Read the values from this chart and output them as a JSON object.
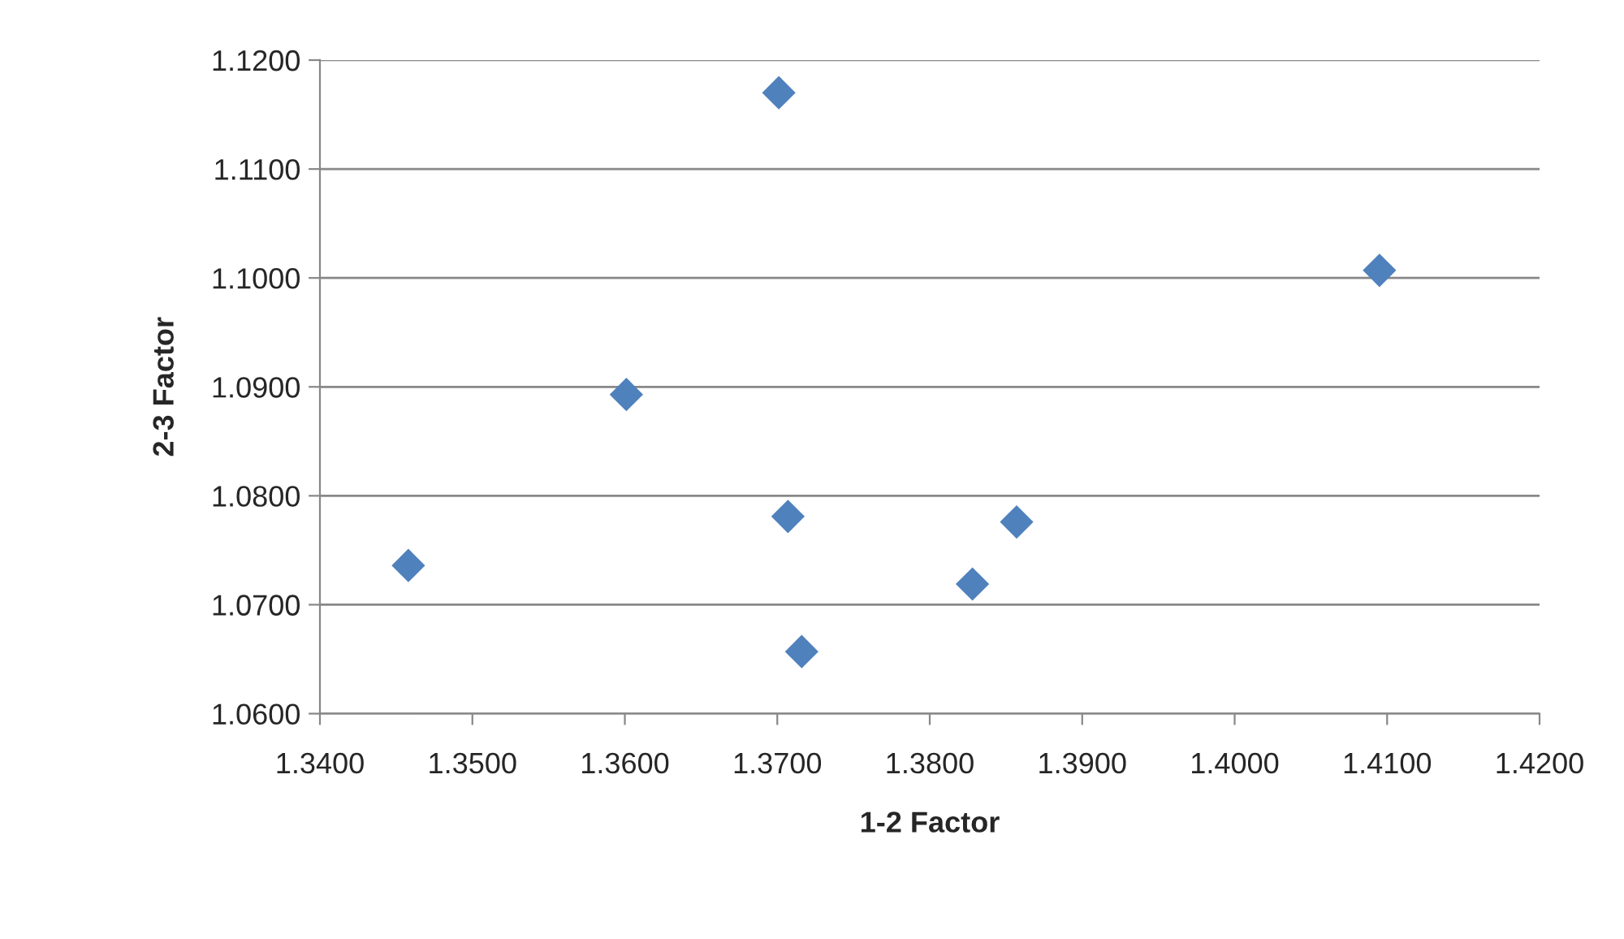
{
  "chart_data": {
    "type": "scatter",
    "xlabel": "1-2 Factor",
    "ylabel": "2-3 Factor",
    "x": [
      1.3458,
      1.3601,
      1.3701,
      1.3707,
      1.3716,
      1.3828,
      1.3857,
      1.4095
    ],
    "series": [
      {
        "color": "#4f81bd",
        "values": [
          1.0736,
          1.0893,
          1.117,
          1.0781,
          1.0657,
          1.0719,
          1.0776,
          1.1007
        ]
      }
    ],
    "xlim": [
      1.34,
      1.42
    ],
    "ylim": [
      1.06,
      1.12
    ],
    "xticks": [
      {
        "value": 1.34,
        "label": "1.3400"
      },
      {
        "value": 1.35,
        "label": "1.3500"
      },
      {
        "value": 1.36,
        "label": "1.3600"
      },
      {
        "value": 1.37,
        "label": "1.3700"
      },
      {
        "value": 1.38,
        "label": "1.3800"
      },
      {
        "value": 1.39,
        "label": "1.3900"
      },
      {
        "value": 1.4,
        "label": "1.4000"
      },
      {
        "value": 1.41,
        "label": "1.4100"
      },
      {
        "value": 1.42,
        "label": "1.4200"
      }
    ],
    "yticks": [
      {
        "value": 1.06,
        "label": "1.0600"
      },
      {
        "value": 1.07,
        "label": "1.0700"
      },
      {
        "value": 1.08,
        "label": "1.0800"
      },
      {
        "value": 1.09,
        "label": "1.0900"
      },
      {
        "value": 1.1,
        "label": "1.1000"
      },
      {
        "value": 1.11,
        "label": "1.1100"
      },
      {
        "value": 1.12,
        "label": "1.1200"
      }
    ],
    "grid": "y",
    "marker": "diamond"
  }
}
